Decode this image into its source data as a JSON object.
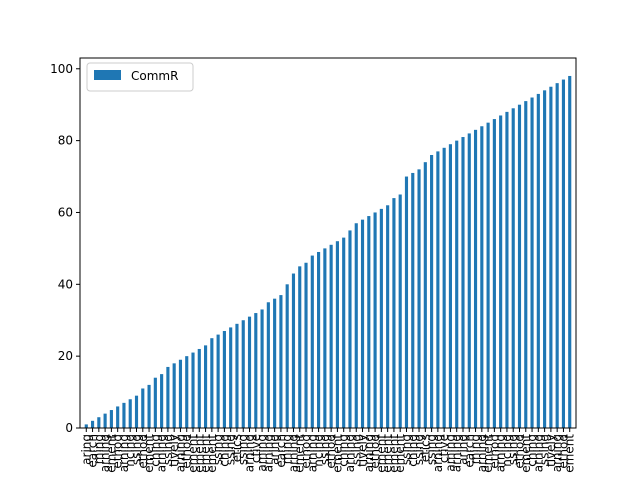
{
  "chart_data": {
    "type": "bar",
    "ylim": [
      0,
      103
    ],
    "y_ticks": [
      0,
      20,
      40,
      60,
      80,
      100
    ],
    "grid": false,
    "legend_position": "top-left",
    "series": [
      {
        "name": "CommR",
        "color": "#1f77b4",
        "values": [
          1,
          2,
          3,
          4,
          5,
          6,
          7,
          8,
          9,
          11,
          12,
          14,
          15,
          17,
          18,
          19,
          20,
          21,
          22,
          23,
          25,
          26,
          27,
          28,
          29,
          30,
          31,
          32,
          33,
          35,
          36,
          37,
          40,
          43,
          45,
          46,
          48,
          49,
          50,
          51,
          52,
          53,
          55,
          57,
          58,
          59,
          60,
          61,
          62,
          64,
          65,
          70,
          71,
          72,
          74,
          76,
          77,
          78,
          79,
          80,
          81,
          82,
          83,
          84,
          85,
          86,
          87,
          88,
          89,
          90,
          91,
          92,
          93,
          94,
          95,
          96,
          97,
          98
        ]
      }
    ],
    "category_labels_visible_fragments": [
      "aring",
      "earch",
      "ming",
      "arning",
      "ement",
      "ethod",
      "arning",
      "ncing",
      "ssing",
      "ethod",
      "ement",
      "ching",
      "arning",
      "ssing",
      "tively",
      "arning",
      "ethod",
      "ement",
      "ement",
      "ement",
      "ement",
      "ssing",
      "ching",
      "ssing",
      "etics",
      "ssing",
      "arning",
      "ctive",
      "aming",
      "arning"
    ]
  }
}
